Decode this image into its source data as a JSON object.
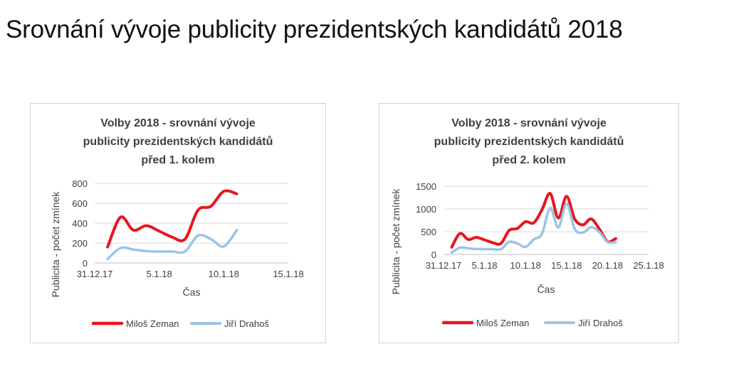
{
  "slide": {
    "title": "Srovnání vývoje publicity prezidentských kandidátů 2018"
  },
  "colors": {
    "zeman": "#e8151f",
    "drahos": "#9dc3e6",
    "grid": "#d9d9d9",
    "text": "#404040"
  },
  "chart_data": [
    {
      "type": "line",
      "title_lines": [
        "Volby 2018 - srovnání vývoje",
        "publicity prezidentských kandidátů",
        "před 1. kolem"
      ],
      "xlabel": "Čas",
      "ylabel": "Publicita - počet zmínek",
      "xlim": [
        0,
        15
      ],
      "x_ticks": [
        {
          "x": 0,
          "label": "31.12.17"
        },
        {
          "x": 5,
          "label": "5.1.18"
        },
        {
          "x": 10,
          "label": "10.1.18"
        },
        {
          "x": 15,
          "label": "15.1.18"
        }
      ],
      "ylim": [
        0,
        800
      ],
      "y_ticks": [
        0,
        200,
        400,
        600,
        800
      ],
      "grid": true,
      "legend_position": "bottom",
      "series": [
        {
          "name": "Miloš Zeman",
          "color": "#e8151f",
          "x": [
            1,
            2,
            3,
            4,
            5,
            6,
            7,
            8,
            9,
            10,
            11
          ],
          "y": [
            160,
            460,
            330,
            375,
            320,
            260,
            240,
            530,
            570,
            720,
            695
          ]
        },
        {
          "name": "Jiří Drahoš",
          "color": "#9dc3e6",
          "x": [
            1,
            2,
            3,
            4,
            5,
            6,
            7,
            8,
            9,
            10,
            11
          ],
          "y": [
            40,
            150,
            135,
            120,
            115,
            115,
            115,
            275,
            240,
            165,
            330
          ]
        }
      ]
    },
    {
      "type": "line",
      "title_lines": [
        "Volby 2018 - srovnání vývoje",
        "publicity prezidentských kandidátů",
        "před 2. kolem"
      ],
      "xlabel": "Čas",
      "ylabel": "Publicita - počet zmínek",
      "xlim": [
        0,
        25
      ],
      "x_ticks": [
        {
          "x": 0,
          "label": "31.12.17"
        },
        {
          "x": 5,
          "label": "5.1.18"
        },
        {
          "x": 10,
          "label": "10.1.18"
        },
        {
          "x": 15,
          "label": "15.1.18"
        },
        {
          "x": 20,
          "label": "20.1.18"
        },
        {
          "x": 25,
          "label": "25.1.18"
        }
      ],
      "ylim": [
        0,
        1500
      ],
      "y_ticks": [
        0,
        500,
        1000,
        1500
      ],
      "grid": true,
      "legend_position": "bottom",
      "series": [
        {
          "name": "Miloš Zeman",
          "color": "#e8151f",
          "x": [
            1,
            2,
            3,
            4,
            5,
            6,
            7,
            8,
            9,
            10,
            11,
            12,
            13,
            14,
            15,
            16,
            17,
            18,
            19,
            20,
            21
          ],
          "y": [
            160,
            460,
            330,
            375,
            320,
            260,
            240,
            530,
            570,
            720,
            695,
            980,
            1340,
            800,
            1280,
            780,
            650,
            780,
            560,
            280,
            350
          ]
        },
        {
          "name": "Jiří Drahoš",
          "color": "#9dc3e6",
          "x": [
            1,
            2,
            3,
            4,
            5,
            6,
            7,
            8,
            9,
            10,
            11,
            12,
            13,
            14,
            15,
            16,
            17,
            18,
            19,
            20,
            21
          ],
          "y": [
            40,
            150,
            135,
            120,
            115,
            115,
            115,
            275,
            240,
            165,
            330,
            450,
            1020,
            590,
            1120,
            560,
            480,
            600,
            490,
            270,
            270
          ]
        }
      ]
    }
  ]
}
